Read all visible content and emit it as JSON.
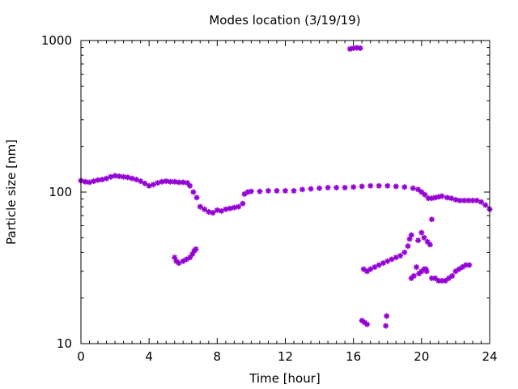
{
  "chart_data": {
    "type": "scatter",
    "title": "Modes location (3/19/19)",
    "xlabel": "Time [hour]",
    "ylabel": "Particle size [nm]",
    "xlim": [
      0,
      24
    ],
    "ylim": [
      10,
      1000
    ],
    "yscale": "log",
    "grid": false,
    "legend": "none",
    "x_ticks": [
      0,
      4,
      8,
      12,
      16,
      20,
      24
    ],
    "y_ticks": [
      10,
      100,
      1000
    ],
    "x_tick_labels": [
      "0",
      "4",
      "8",
      "12",
      "16",
      "20",
      "24"
    ],
    "y_tick_labels": [
      "10",
      "100",
      "1000"
    ],
    "marker_color": "#9400D3",
    "series": [
      {
        "points": [
          [
            0.0,
            119
          ],
          [
            0.25,
            117
          ],
          [
            0.5,
            116
          ],
          [
            0.75,
            118
          ],
          [
            1.0,
            120
          ],
          [
            1.25,
            121
          ],
          [
            1.5,
            123
          ],
          [
            1.75,
            126
          ],
          [
            2.0,
            128
          ],
          [
            2.25,
            127
          ],
          [
            2.5,
            126
          ],
          [
            2.75,
            125
          ],
          [
            3.0,
            123
          ],
          [
            3.25,
            121
          ],
          [
            3.5,
            118
          ],
          [
            3.75,
            114
          ],
          [
            4.0,
            110
          ],
          [
            4.25,
            112
          ],
          [
            4.5,
            115
          ],
          [
            4.75,
            117
          ],
          [
            5.0,
            118
          ],
          [
            5.25,
            117
          ],
          [
            5.5,
            117
          ],
          [
            5.75,
            116
          ],
          [
            6.0,
            116
          ],
          [
            6.25,
            115
          ],
          [
            6.4,
            110
          ],
          [
            6.6,
            100
          ],
          [
            6.8,
            92
          ],
          [
            7.0,
            80
          ],
          [
            7.25,
            77
          ],
          [
            7.5,
            74
          ],
          [
            7.75,
            73
          ],
          [
            8.0,
            76
          ],
          [
            8.25,
            75
          ],
          [
            8.5,
            77
          ],
          [
            8.75,
            78
          ],
          [
            9.0,
            79
          ],
          [
            9.25,
            80
          ],
          [
            9.5,
            84
          ],
          [
            9.6,
            97
          ],
          [
            9.8,
            100
          ],
          [
            10.0,
            101
          ],
          [
            10.5,
            101
          ],
          [
            11.0,
            102
          ],
          [
            11.5,
            102
          ],
          [
            12.0,
            102
          ],
          [
            12.5,
            102
          ],
          [
            13.0,
            104
          ],
          [
            13.5,
            105
          ],
          [
            14.0,
            106
          ],
          [
            14.5,
            107
          ],
          [
            15.0,
            107
          ],
          [
            15.5,
            107
          ],
          [
            16.0,
            108
          ],
          [
            16.5,
            109
          ],
          [
            17.0,
            110
          ],
          [
            17.5,
            110
          ],
          [
            18.0,
            110
          ],
          [
            18.5,
            109
          ],
          [
            19.0,
            108
          ],
          [
            19.5,
            106
          ],
          [
            19.8,
            104
          ],
          [
            20.0,
            100
          ],
          [
            20.2,
            96
          ],
          [
            20.4,
            91
          ],
          [
            20.6,
            91
          ],
          [
            20.8,
            92
          ],
          [
            21.0,
            93
          ],
          [
            21.2,
            94
          ],
          [
            21.5,
            92
          ],
          [
            21.75,
            91
          ],
          [
            22.0,
            89
          ],
          [
            22.25,
            88
          ],
          [
            22.5,
            88
          ],
          [
            22.75,
            88
          ],
          [
            23.0,
            88
          ],
          [
            23.25,
            88
          ],
          [
            23.5,
            86
          ],
          [
            23.75,
            82
          ],
          [
            24.0,
            77
          ]
        ]
      },
      {
        "points": [
          [
            5.5,
            37
          ],
          [
            5.6,
            35
          ],
          [
            5.75,
            34
          ],
          [
            6.0,
            35
          ],
          [
            6.2,
            36
          ],
          [
            6.4,
            37
          ],
          [
            6.55,
            39
          ],
          [
            6.65,
            41
          ],
          [
            6.75,
            42
          ]
        ]
      },
      {
        "points": [
          [
            15.8,
            880
          ],
          [
            16.0,
            890
          ],
          [
            16.2,
            895
          ],
          [
            16.4,
            890
          ]
        ]
      },
      {
        "points": [
          [
            16.5,
            14.2
          ],
          [
            16.65,
            13.8
          ],
          [
            16.8,
            13.4
          ],
          [
            17.9,
            13.1
          ],
          [
            17.95,
            15.2
          ]
        ]
      },
      {
        "points": [
          [
            16.6,
            31
          ],
          [
            16.8,
            30
          ],
          [
            17.0,
            31
          ],
          [
            17.25,
            32
          ],
          [
            17.5,
            33
          ],
          [
            17.75,
            34
          ],
          [
            18.0,
            35
          ],
          [
            18.25,
            36
          ],
          [
            18.5,
            37
          ],
          [
            18.75,
            38
          ],
          [
            19.0,
            40
          ],
          [
            19.2,
            44
          ],
          [
            19.3,
            49
          ],
          [
            19.4,
            52
          ]
        ]
      },
      {
        "points": [
          [
            19.4,
            27
          ],
          [
            19.55,
            28
          ],
          [
            19.7,
            32
          ],
          [
            19.85,
            29
          ],
          [
            20.0,
            30
          ],
          [
            20.15,
            31
          ],
          [
            20.25,
            31
          ],
          [
            20.3,
            30
          ],
          [
            20.6,
            27
          ],
          [
            20.8,
            27
          ],
          [
            21.0,
            26
          ],
          [
            21.2,
            26
          ],
          [
            21.4,
            26
          ],
          [
            21.6,
            27
          ],
          [
            21.8,
            28
          ],
          [
            22.0,
            30
          ],
          [
            22.2,
            31
          ],
          [
            22.4,
            32
          ],
          [
            22.6,
            33
          ],
          [
            22.8,
            33
          ]
        ]
      },
      {
        "points": [
          [
            19.8,
            48
          ],
          [
            20.0,
            54
          ],
          [
            20.15,
            50
          ],
          [
            20.35,
            47
          ],
          [
            20.5,
            45
          ],
          [
            20.6,
            66
          ]
        ]
      }
    ]
  }
}
